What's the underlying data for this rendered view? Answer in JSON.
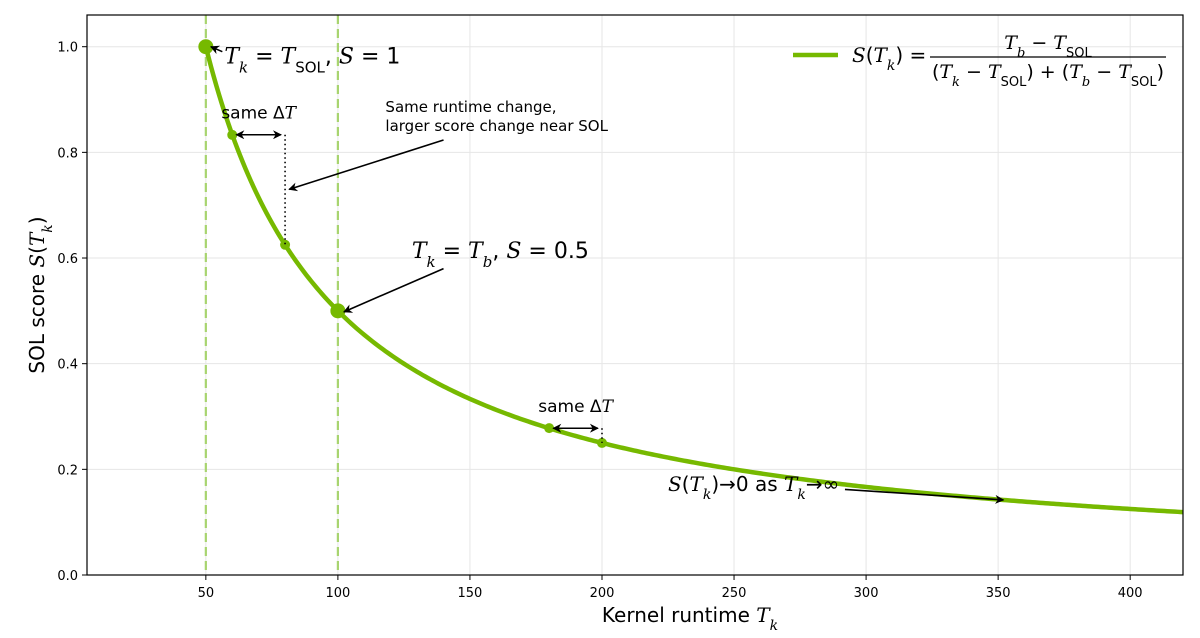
{
  "chart_data": {
    "type": "line",
    "xlabel": "Kernel runtime T_k",
    "ylabel": "SOL score S(T_k)",
    "xlim": [
      5,
      420
    ],
    "ylim": [
      0,
      1.06
    ],
    "x_ticks": [
      50,
      100,
      150,
      200,
      250,
      300,
      350,
      400
    ],
    "y_ticks": [
      0.0,
      0.2,
      0.4,
      0.6,
      0.8,
      1.0
    ],
    "x_tick_labels": [
      "50",
      "100",
      "150",
      "200",
      "250",
      "300",
      "350",
      "400"
    ],
    "y_tick_labels": [
      "0.0",
      "0.2",
      "0.4",
      "0.6",
      "0.8",
      "1.0"
    ],
    "grid": true,
    "legend_position": "top-right",
    "line_color": "#76b900",
    "vline_color": "#a8d46f",
    "params": {
      "T_sol": 50,
      "T_b": 100
    },
    "series": [
      {
        "name": "S(T_k) = (T_b − T_SOL) / ((T_k − T_SOL) + (T_b − T_SOL))",
        "x": [
          50,
          60,
          70,
          80,
          90,
          100,
          120,
          140,
          160,
          180,
          200,
          220,
          240,
          260,
          280,
          300,
          320,
          340,
          360,
          380,
          400,
          420
        ],
        "y": [
          1.0,
          0.833,
          0.714,
          0.625,
          0.556,
          0.5,
          0.417,
          0.357,
          0.313,
          0.278,
          0.25,
          0.227,
          0.208,
          0.192,
          0.179,
          0.167,
          0.156,
          0.147,
          0.139,
          0.132,
          0.125,
          0.119
        ]
      }
    ],
    "vertical_lines": [
      50,
      100
    ],
    "highlight_points": [
      {
        "x": 50,
        "y": 1.0,
        "large": true
      },
      {
        "x": 60,
        "y": 0.833,
        "large": false
      },
      {
        "x": 80,
        "y": 0.625,
        "large": false
      },
      {
        "x": 100,
        "y": 0.5,
        "large": true
      },
      {
        "x": 180,
        "y": 0.278,
        "large": false
      },
      {
        "x": 200,
        "y": 0.25,
        "large": false
      }
    ],
    "annotations": {
      "sol_point": "T_k = T_SOL,  S = 1",
      "base_point": "T_k = T_b,  S = 0.5",
      "same_dt_1": "same ΔT",
      "same_dt_2": "same ΔT",
      "note_line1": "Same runtime change,",
      "note_line2": "larger score change near SOL",
      "asymptote": "S(T_k)→0 as T_k→∞"
    }
  }
}
